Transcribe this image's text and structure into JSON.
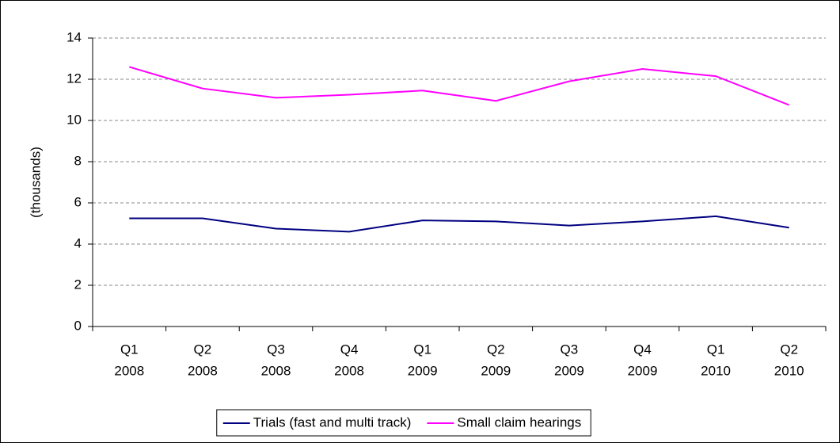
{
  "chart_data": {
    "type": "line",
    "y_label": "(thousands)",
    "categories": [
      [
        "Q1",
        "2008"
      ],
      [
        "Q2",
        "2008"
      ],
      [
        "Q3",
        "2008"
      ],
      [
        "Q4",
        "2008"
      ],
      [
        "Q1",
        "2009"
      ],
      [
        "Q2",
        "2009"
      ],
      [
        "Q3",
        "2009"
      ],
      [
        "Q4",
        "2009"
      ],
      [
        "Q1",
        "2010"
      ],
      [
        "Q2",
        "2010"
      ]
    ],
    "series": [
      {
        "name": "Trials (fast and multi track)",
        "color": "#000080",
        "values": [
          5.25,
          5.25,
          4.75,
          4.6,
          5.15,
          5.1,
          4.9,
          5.1,
          5.35,
          4.8
        ]
      },
      {
        "name": "Small claim hearings",
        "color": "#ff00ff",
        "values": [
          12.6,
          11.55,
          11.1,
          11.25,
          11.45,
          10.95,
          11.9,
          12.5,
          12.15,
          10.75
        ]
      }
    ],
    "ylim": [
      0,
      14
    ],
    "yticks": [
      0,
      2,
      4,
      6,
      8,
      10,
      12,
      14
    ],
    "grid": true,
    "legend": "bottom"
  }
}
